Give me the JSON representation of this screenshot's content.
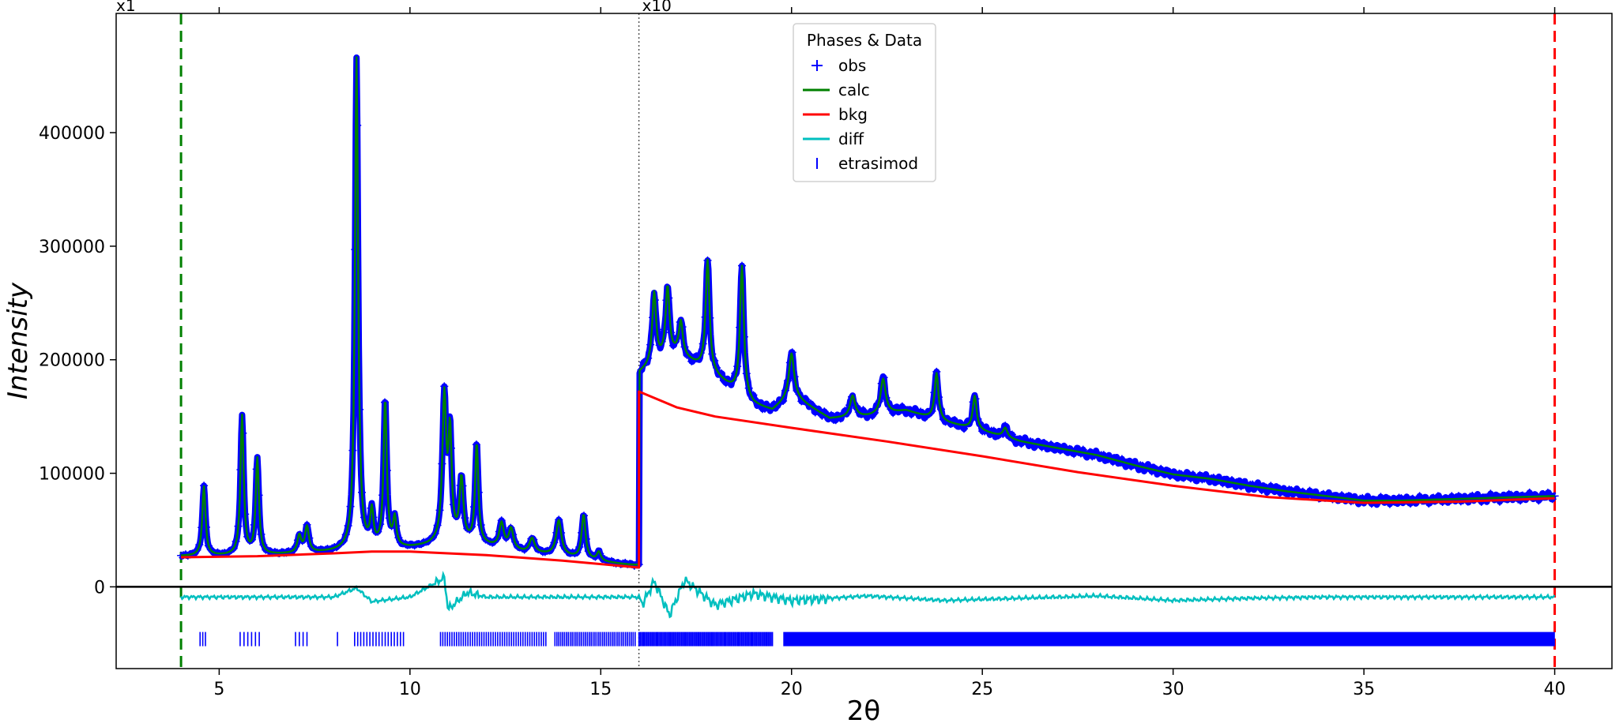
{
  "chart_data": {
    "type": "line",
    "title": "",
    "xlabel": "2θ",
    "ylabel": "Intensity",
    "xlim": [
      2.3,
      41.5
    ],
    "ylim": [
      -72000,
      505000
    ],
    "x_ticks": [
      5,
      10,
      15,
      20,
      25,
      30,
      35,
      40
    ],
    "y_ticks": [
      0,
      100000,
      200000,
      300000,
      400000
    ],
    "y_tick_labels": [
      "0",
      "100000",
      "200000",
      "300000",
      "400000"
    ],
    "x_tick_labels": [
      "5",
      "10",
      "15",
      "20",
      "25",
      "30",
      "35",
      "40"
    ],
    "top_x_ticks": [
      5,
      10,
      15,
      20,
      25,
      30,
      35,
      40
    ],
    "scale_regions": [
      {
        "label": "x1",
        "x_start": 2.3
      },
      {
        "label": "x10",
        "x_start": 16.0
      }
    ],
    "scale_divider_x": 16.0,
    "limit_lines": [
      {
        "name": "lower-limit",
        "x": 4.0,
        "color": "#008000"
      },
      {
        "name": "upper-limit",
        "x": 40.0,
        "color": "#ff0000"
      }
    ],
    "zero_line_y": 0,
    "legend": {
      "title": "Phases & Data",
      "placement": "top-center",
      "entries": [
        {
          "label": "obs",
          "marker": "+",
          "color": "#0000ff"
        },
        {
          "label": "calc",
          "marker": "line",
          "color": "#008000"
        },
        {
          "label": "bkg",
          "marker": "line",
          "color": "#ff0000"
        },
        {
          "label": "diff",
          "marker": "line",
          "color": "#00bfbf"
        },
        {
          "label": "etrasimod",
          "marker": "|",
          "color": "#0000ff"
        }
      ]
    },
    "background": {
      "x": [
        4.0,
        6.0,
        8.0,
        9.0,
        10.0,
        12.0,
        14.0,
        16.0,
        16.001,
        17.0,
        18.0,
        20.0,
        22.5,
        25.0,
        27.5,
        30.0,
        32.5,
        35.0,
        37.5,
        40.0
      ],
      "y": [
        26000,
        27000,
        29500,
        31000,
        31000,
        28000,
        23000,
        17000,
        172000,
        158000,
        150000,
        140000,
        128000,
        115000,
        101000,
        89000,
        79000,
        74000,
        75000,
        78000
      ]
    },
    "baseline": {
      "x": [
        4.0,
        6.0,
        8.0,
        9.0,
        10.0,
        10.5,
        11.0,
        12.0,
        13.0,
        14.0,
        15.0,
        16.0,
        16.001,
        16.5,
        17.0,
        18.0,
        19.0,
        19.5,
        20.0,
        21.0,
        22.0,
        23.0,
        24.0,
        25.0,
        26.0,
        27.0,
        28.0,
        29.0,
        30.0,
        31.0,
        32.0,
        33.0,
        34.0,
        35.0,
        36.0,
        37.0,
        38.0,
        39.0,
        40.0
      ],
      "y": [
        27000,
        27500,
        30500,
        33000,
        34000,
        36000,
        40000,
        36000,
        30000,
        27000,
        22000,
        17500,
        188000,
        198000,
        205000,
        185000,
        160000,
        155000,
        168000,
        148000,
        150000,
        155000,
        145000,
        137000,
        128000,
        122000,
        116000,
        107000,
        99000,
        95000,
        89000,
        84000,
        80000,
        76000,
        76000,
        77000,
        78000,
        79000,
        80000
      ]
    },
    "peaks": [
      {
        "x": 4.6,
        "y": 88000,
        "w": 0.05
      },
      {
        "x": 5.6,
        "y": 150000,
        "w": 0.05
      },
      {
        "x": 6.0,
        "y": 112000,
        "w": 0.05
      },
      {
        "x": 7.1,
        "y": 44000,
        "w": 0.06
      },
      {
        "x": 7.3,
        "y": 52000,
        "w": 0.06
      },
      {
        "x": 8.6,
        "y": 465000,
        "w": 0.05
      },
      {
        "x": 9.0,
        "y": 63000,
        "w": 0.05
      },
      {
        "x": 9.35,
        "y": 163000,
        "w": 0.05
      },
      {
        "x": 9.6,
        "y": 58000,
        "w": 0.05
      },
      {
        "x": 10.9,
        "y": 165000,
        "w": 0.06
      },
      {
        "x": 11.05,
        "y": 130000,
        "w": 0.05
      },
      {
        "x": 11.35,
        "y": 93000,
        "w": 0.06
      },
      {
        "x": 11.75,
        "y": 125000,
        "w": 0.05
      },
      {
        "x": 12.4,
        "y": 55000,
        "w": 0.07
      },
      {
        "x": 12.65,
        "y": 50000,
        "w": 0.07
      },
      {
        "x": 13.2,
        "y": 42000,
        "w": 0.08
      },
      {
        "x": 13.9,
        "y": 58000,
        "w": 0.08
      },
      {
        "x": 14.55,
        "y": 63000,
        "w": 0.06
      },
      {
        "x": 14.95,
        "y": 30000,
        "w": 0.06
      },
      {
        "x": 16.4,
        "y": 258000,
        "w": 0.06
      },
      {
        "x": 16.75,
        "y": 263000,
        "w": 0.06
      },
      {
        "x": 17.1,
        "y": 232000,
        "w": 0.06
      },
      {
        "x": 17.8,
        "y": 287000,
        "w": 0.06
      },
      {
        "x": 18.7,
        "y": 282000,
        "w": 0.06
      },
      {
        "x": 20.0,
        "y": 205000,
        "w": 0.08
      },
      {
        "x": 21.6,
        "y": 168000,
        "w": 0.08
      },
      {
        "x": 22.4,
        "y": 183000,
        "w": 0.08
      },
      {
        "x": 23.8,
        "y": 188000,
        "w": 0.06
      },
      {
        "x": 24.8,
        "y": 168000,
        "w": 0.06
      },
      {
        "x": 25.6,
        "y": 140000,
        "w": 0.07
      }
    ],
    "difference": {
      "x": [
        4.0,
        6.0,
        8.0,
        8.6,
        9.0,
        10.0,
        10.9,
        11.0,
        11.5,
        12.0,
        14.0,
        16.0,
        16.1,
        16.4,
        16.8,
        17.2,
        18.0,
        19.0,
        20.0,
        22.0,
        24.0,
        26.0,
        28.0,
        30.0,
        32.0,
        34.0,
        36.0,
        38.0,
        40.0
      ],
      "y": [
        -9000,
        -9000,
        -9000,
        -1000,
        -13000,
        -9000,
        8000,
        -20000,
        -5000,
        -9000,
        -9000,
        -9000,
        -15000,
        5000,
        -25000,
        6000,
        -16000,
        -6000,
        -12000,
        -8000,
        -12000,
        -10000,
        -8000,
        -12000,
        -10000,
        -9000,
        -9000,
        -9000,
        -9000
      ]
    },
    "reflection_ticks_y": -46000,
    "reflection_ticks_regions": [
      {
        "x_start": 4.5,
        "x_end": 4.7,
        "step": 0.07
      },
      {
        "x_start": 5.55,
        "x_end": 6.1,
        "step": 0.1
      },
      {
        "x_start": 7.0,
        "x_end": 7.3,
        "step": 0.1
      },
      {
        "x_start": 8.1,
        "x_end": 8.15,
        "step": 0.1
      },
      {
        "x_start": 8.55,
        "x_end": 9.9,
        "step": 0.08
      },
      {
        "x_start": 10.8,
        "x_end": 13.6,
        "step": 0.06
      },
      {
        "x_start": 13.8,
        "x_end": 15.9,
        "step": 0.05
      },
      {
        "x_start": 16.0,
        "x_end": 19.5,
        "step": 0.035
      },
      {
        "x_start": 19.8,
        "x_end": 40.0,
        "step": 0.028
      }
    ]
  }
}
